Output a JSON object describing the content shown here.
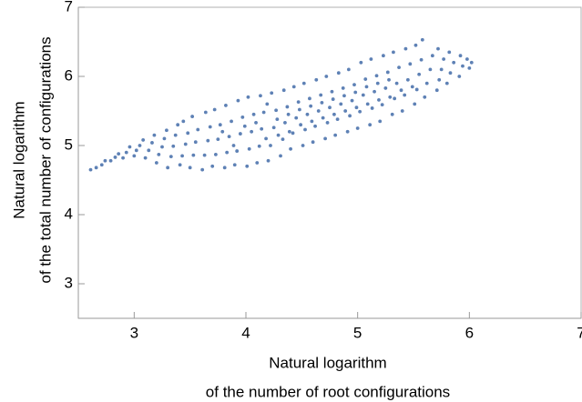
{
  "chart_data": {
    "type": "scatter",
    "xlabel": [
      "Natural logarithm",
      "of the number of root configurations"
    ],
    "ylabel": [
      "Natural logarithm",
      "of the total number of configurations"
    ],
    "color": "#5e81b5",
    "xlim": [
      2.5,
      7
    ],
    "ylim": [
      2.5,
      7
    ],
    "xticks": [
      3,
      4,
      5,
      6,
      7
    ],
    "yticks": [
      3,
      4,
      5,
      6,
      7
    ],
    "grid": false,
    "x": [
      2.61,
      2.66,
      2.71,
      2.74,
      2.79,
      2.83,
      2.86,
      2.9,
      2.93,
      2.96,
      3.0,
      3.02,
      3.05,
      3.08,
      3.1,
      3.13,
      3.16,
      3.18,
      3.2,
      3.22,
      3.25,
      3.27,
      3.29,
      3.3,
      3.33,
      3.35,
      3.37,
      3.39,
      3.41,
      3.43,
      3.46,
      3.48,
      3.44,
      3.5,
      3.53,
      3.55,
      3.57,
      3.52,
      3.61,
      3.63,
      3.66,
      3.68,
      3.64,
      3.7,
      3.73,
      3.75,
      3.77,
      3.72,
      3.79,
      3.81,
      3.83,
      3.85,
      3.87,
      3.82,
      3.89,
      3.9,
      3.92,
      3.95,
      3.97,
      3.93,
      3.99,
      4.01,
      4.03,
      4.05,
      4.07,
      4.02,
      4.09,
      4.1,
      4.12,
      4.14,
      4.16,
      4.13,
      4.18,
      4.19,
      4.2,
      4.22,
      4.25,
      4.27,
      4.23,
      4.28,
      4.29,
      4.31,
      4.33,
      4.35,
      4.37,
      4.34,
      4.39,
      4.38,
      4.4,
      4.42,
      4.45,
      4.47,
      4.43,
      4.49,
      4.48,
      4.51,
      4.53,
      4.55,
      4.57,
      4.52,
      4.59,
      4.58,
      4.6,
      4.62,
      4.65,
      4.67,
      4.63,
      4.69,
      4.68,
      4.71,
      4.73,
      4.75,
      4.77,
      4.72,
      4.79,
      4.78,
      4.8,
      4.82,
      4.85,
      4.87,
      4.83,
      4.89,
      4.88,
      4.91,
      4.93,
      4.95,
      4.97,
      4.92,
      4.99,
      4.98,
      5.0,
      5.02,
      5.05,
      5.07,
      5.03,
      5.09,
      5.08,
      5.11,
      5.13,
      5.15,
      5.17,
      5.12,
      5.19,
      5.18,
      5.2,
      5.22,
      5.25,
      5.27,
      5.23,
      5.29,
      5.28,
      5.31,
      5.33,
      5.35,
      5.37,
      5.32,
      5.39,
      5.4,
      5.42,
      5.45,
      5.47,
      5.43,
      5.49,
      5.51,
      5.53,
      5.55,
      5.57,
      5.52,
      5.6,
      5.62,
      5.65,
      5.67,
      5.58,
      5.71,
      5.73,
      5.75,
      5.77,
      5.72,
      5.8,
      5.83,
      5.86,
      5.82,
      5.91,
      5.94,
      5.92,
      6.0,
      6.02,
      5.98
    ],
    "values": [
      4.65,
      4.68,
      4.72,
      4.78,
      4.78,
      4.83,
      4.88,
      4.82,
      4.9,
      4.98,
      4.85,
      4.93,
      5.0,
      5.08,
      4.82,
      4.93,
      5.04,
      5.15,
      4.75,
      4.87,
      4.98,
      5.1,
      5.22,
      4.68,
      4.84,
      4.99,
      5.15,
      5.3,
      4.72,
      4.85,
      5.02,
      5.18,
      5.35,
      4.68,
      4.86,
      5.05,
      5.23,
      5.42,
      4.65,
      4.86,
      5.07,
      5.27,
      5.48,
      4.7,
      4.87,
      5.09,
      5.3,
      5.52,
      5.2,
      4.68,
      4.9,
      5.13,
      5.35,
      5.58,
      5.0,
      4.72,
      4.92,
      5.17,
      5.41,
      5.65,
      5.28,
      4.7,
      4.95,
      5.2,
      5.45,
      5.7,
      5.33,
      4.75,
      4.99,
      5.24,
      5.48,
      5.72,
      5.1,
      5.6,
      4.78,
      5.0,
      5.26,
      5.51,
      5.76,
      5.38,
      5.15,
      4.85,
      5.09,
      5.33,
      5.56,
      5.8,
      5.2,
      5.45,
      4.95,
      5.18,
      5.4,
      5.63,
      5.85,
      5.3,
      5.52,
      5.0,
      5.23,
      5.45,
      5.68,
      5.9,
      5.35,
      5.57,
      5.05,
      5.28,
      5.5,
      5.73,
      5.95,
      5.4,
      5.62,
      5.1,
      5.33,
      5.55,
      5.78,
      6.0,
      5.45,
      5.67,
      5.15,
      5.38,
      5.6,
      5.83,
      6.05,
      5.5,
      5.72,
      5.2,
      5.43,
      5.65,
      5.88,
      6.1,
      5.55,
      5.77,
      5.25,
      5.49,
      5.73,
      5.96,
      6.2,
      5.6,
      5.85,
      5.3,
      5.54,
      5.78,
      6.01,
      6.25,
      5.66,
      5.9,
      5.35,
      5.59,
      5.83,
      6.06,
      6.3,
      5.7,
      5.95,
      5.45,
      5.68,
      5.9,
      6.13,
      6.35,
      5.8,
      5.5,
      5.73,
      5.95,
      6.18,
      6.4,
      5.85,
      5.6,
      5.81,
      6.03,
      6.24,
      6.45,
      5.7,
      5.9,
      6.1,
      6.3,
      6.53,
      5.8,
      5.95,
      6.1,
      6.25,
      6.4,
      5.9,
      6.05,
      6.2,
      6.35,
      6.0,
      6.15,
      6.3,
      6.12,
      6.2,
      6.25
    ]
  }
}
